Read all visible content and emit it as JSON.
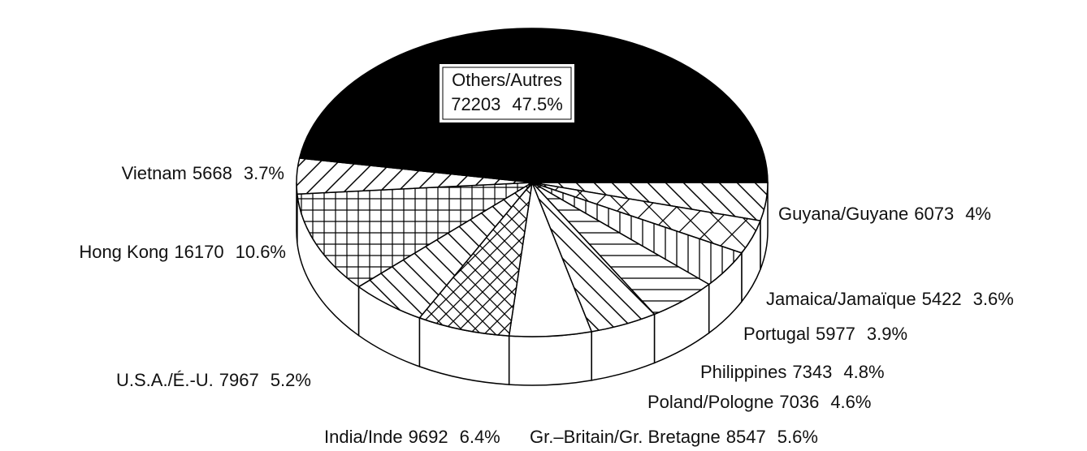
{
  "chart_data": {
    "type": "pie",
    "categories": [
      "Guyana/Guyane",
      "Jamaica/Jamaïque",
      "Portugal",
      "Philippines",
      "Poland/Pologne",
      "Gr.–Britain/Gr. Bretagne",
      "India/Inde",
      "U.S.A./É.-U.",
      "Hong Kong",
      "Vietnam",
      "Others/Autres"
    ],
    "values": [
      6073,
      5422,
      5977,
      7343,
      7036,
      8547,
      9692,
      7967,
      16170,
      5668,
      72203
    ],
    "percent_labels": [
      "4%",
      "3.6%",
      "3.9%",
      "4.8%",
      "4.6%",
      "5.6%",
      "6.4%",
      "5.2%",
      "10.6%",
      "3.7%",
      "47.5%"
    ]
  }
}
